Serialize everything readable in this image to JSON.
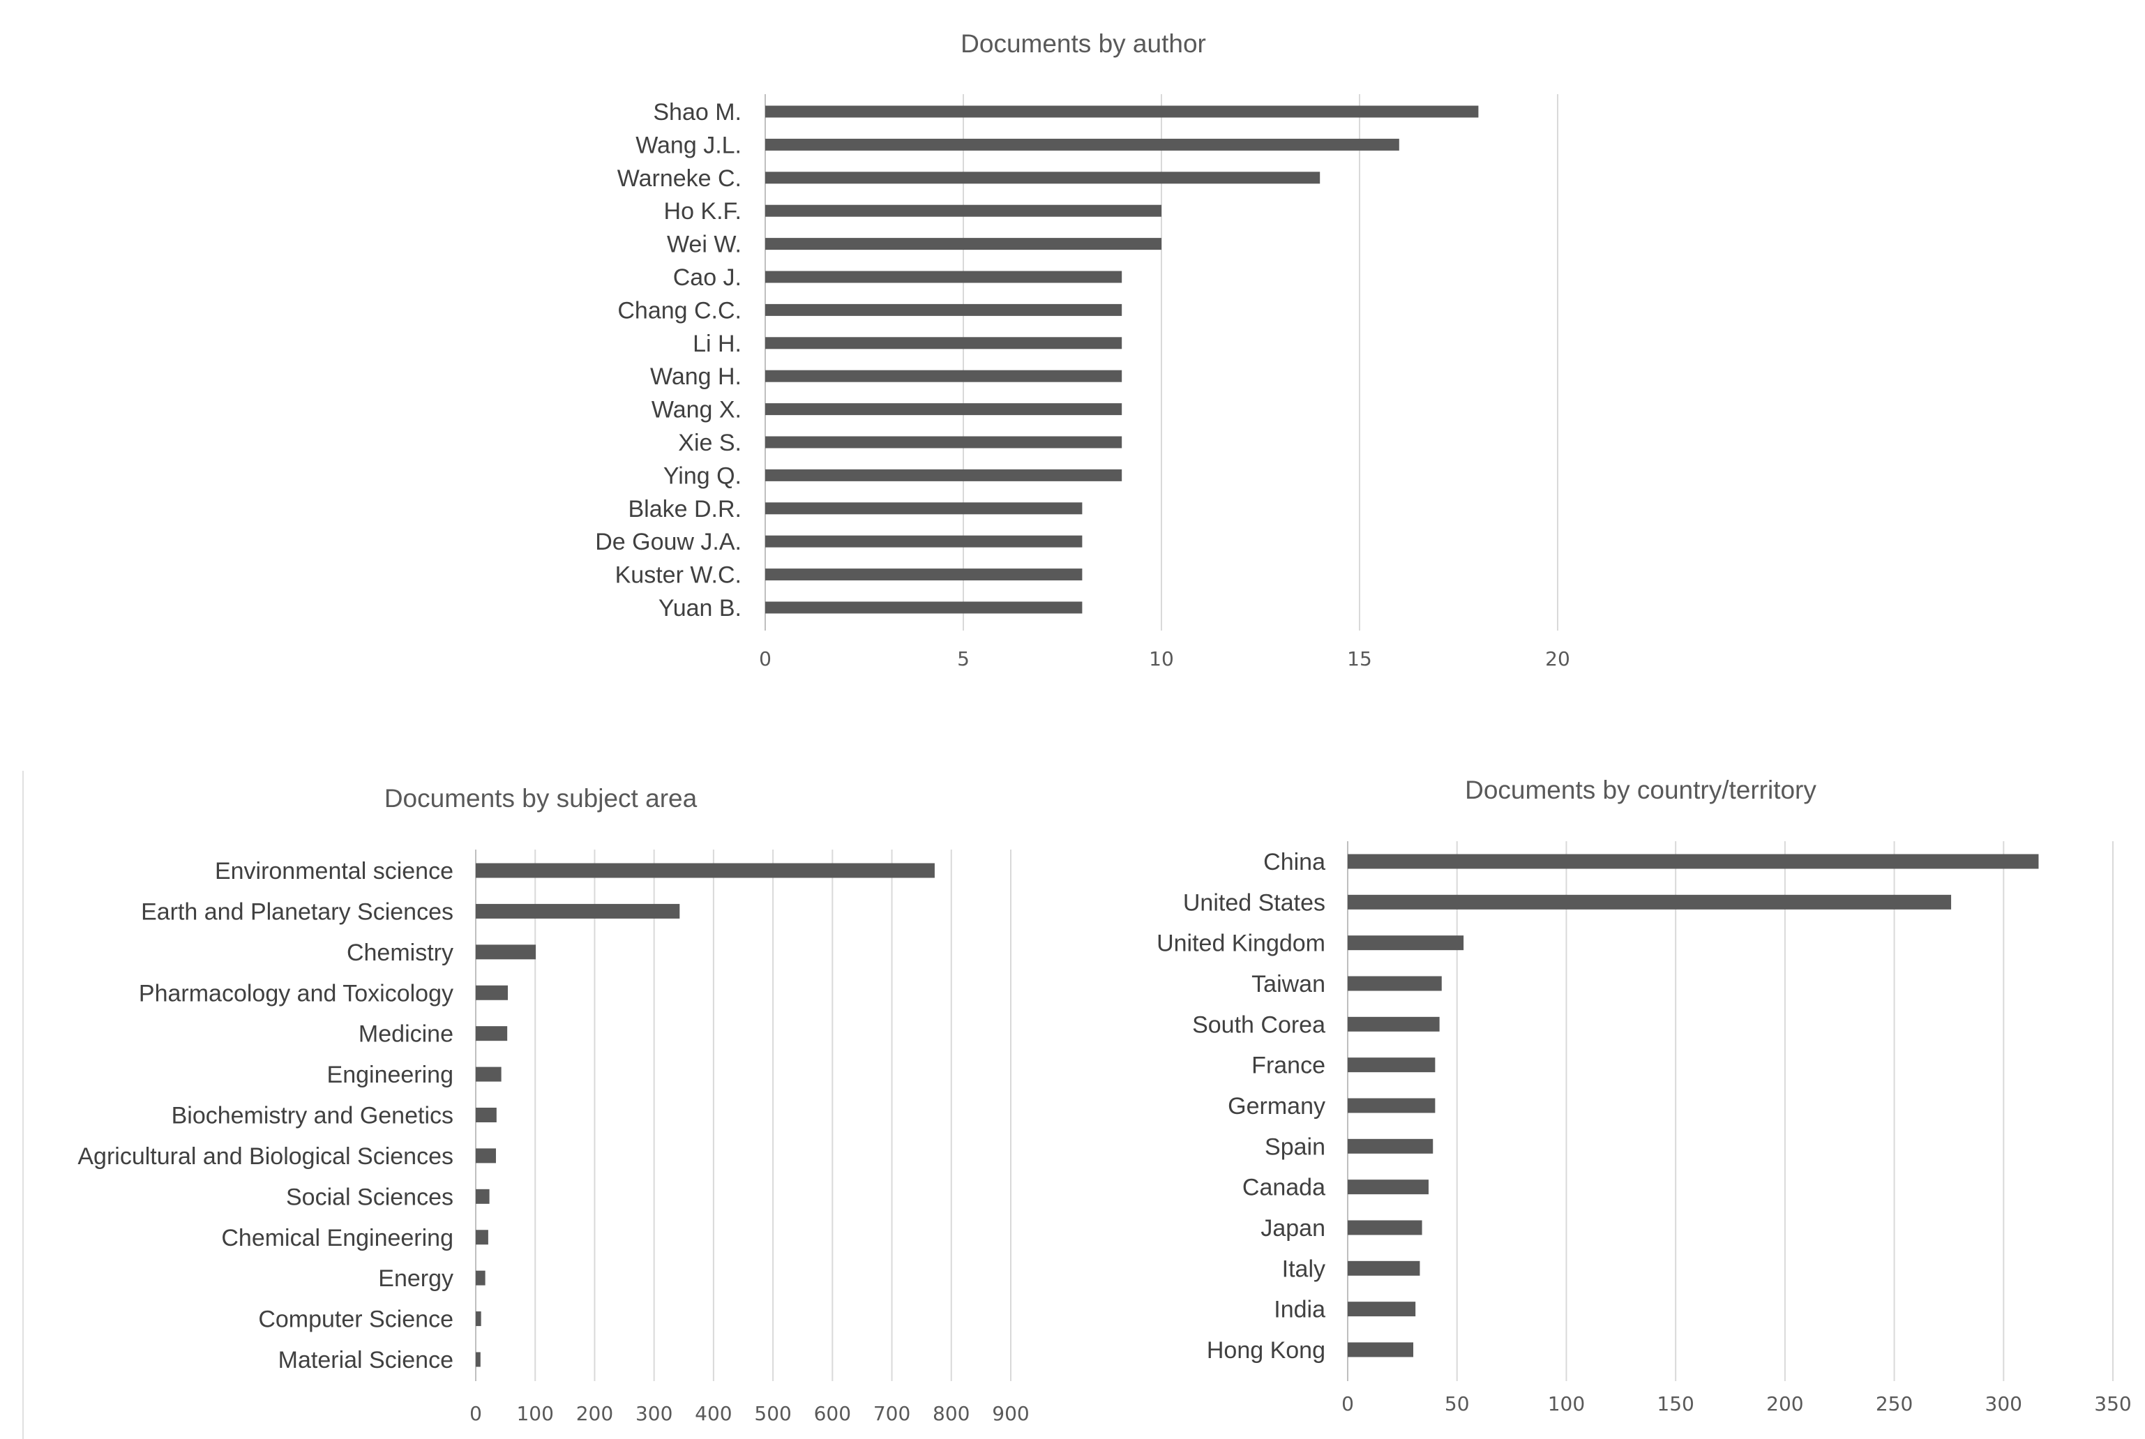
{
  "chart_data": [
    {
      "type": "bar",
      "orientation": "horizontal",
      "title": "Documents by author",
      "categories": [
        "Shao M.",
        "Wang J.L.",
        "Warneke C.",
        "Ho K.F.",
        "Wei W.",
        "Cao J.",
        "Chang C.C.",
        "Li H.",
        "Wang H.",
        "Wang X.",
        "Xie S.",
        "Ying Q.",
        "Blake D.R.",
        "De Gouw J.A.",
        "Kuster W.C.",
        "Yuan B."
      ],
      "values": [
        18,
        16,
        14,
        10,
        10,
        9,
        9,
        9,
        9,
        9,
        9,
        9,
        8,
        8,
        8,
        8
      ],
      "xlim": [
        0,
        20
      ],
      "xticks": [
        0,
        5,
        10,
        15,
        20
      ],
      "xlabel": "",
      "ylabel": "",
      "grid": true,
      "legend": "none",
      "color": "#595959"
    },
    {
      "type": "bar",
      "orientation": "horizontal",
      "title": "Documents by subject area",
      "categories": [
        "Environmental science",
        "Earth and Planetary Sciences",
        "Chemistry",
        "Pharmacology and Toxicology",
        "Medicine",
        "Engineering",
        "Biochemistry and Genetics",
        "Agricultural and Biological Sciences",
        "Social Sciences",
        "Chemical Engineering",
        "Energy",
        "Computer Science",
        "Material Science"
      ],
      "values": [
        772,
        343,
        101,
        54,
        53,
        43,
        35,
        34,
        23,
        21,
        16,
        9,
        8
      ],
      "xlim": [
        0,
        900
      ],
      "xticks": [
        0,
        100,
        200,
        300,
        400,
        500,
        600,
        700,
        800,
        900
      ],
      "xlabel": "",
      "ylabel": "",
      "grid": true,
      "legend": "none",
      "color": "#595959"
    },
    {
      "type": "bar",
      "orientation": "horizontal",
      "title": "Documents by country/territory",
      "categories": [
        "China",
        "United States",
        "United Kingdom",
        "Taiwan",
        "South Corea",
        "France",
        "Germany",
        "Spain",
        "Canada",
        "Japan",
        "Italy",
        "India",
        "Hong Kong"
      ],
      "values": [
        316,
        276,
        53,
        43,
        42,
        40,
        40,
        39,
        37,
        34,
        33,
        31,
        30
      ],
      "xlim": [
        0,
        350
      ],
      "xticks": [
        0,
        50,
        100,
        150,
        200,
        250,
        300,
        350
      ],
      "xlabel": "",
      "ylabel": "",
      "grid": true,
      "legend": "none",
      "color": "#595959"
    }
  ]
}
